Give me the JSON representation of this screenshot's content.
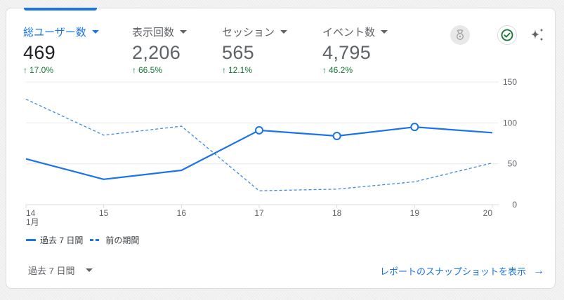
{
  "colors": {
    "accent": "#1a73e8",
    "positive": "#137333",
    "muted_text": "#5f6368",
    "primary_text": "#202124",
    "gridline": "#e8eaed"
  },
  "metrics": [
    {
      "label": "総ユーザー数",
      "value": "469",
      "delta": "17.0%",
      "active": true
    },
    {
      "label": "表示回数",
      "value": "2,206",
      "delta": "66.5%",
      "active": false
    },
    {
      "label": "セッション",
      "value": "565",
      "delta": "12.1%",
      "active": false
    },
    {
      "label": "イベント数",
      "value": "4,795",
      "delta": "46.2%",
      "active": false
    }
  ],
  "header_icons": {
    "medal": "medal-icon",
    "check": "check-circle-icon",
    "sparkle": "sparkle-icon"
  },
  "legend": {
    "current": "過去 7 日間",
    "previous": "前の期間"
  },
  "footer": {
    "range_label": "過去 7 日間",
    "snapshot_link": "レポートのスナップショットを表示",
    "arrow": "→"
  },
  "chart_data": {
    "type": "line",
    "title": "総ユーザー数",
    "x": [
      "14",
      "15",
      "16",
      "17",
      "18",
      "19",
      "20"
    ],
    "x_sublabel": "1月",
    "series": [
      {
        "name": "過去 7 日間",
        "style": "solid",
        "values": [
          56,
          31,
          42,
          91,
          84,
          95,
          88
        ]
      },
      {
        "name": "前の期間",
        "style": "dashed",
        "values": [
          129,
          85,
          96,
          17,
          19,
          28,
          51
        ]
      }
    ],
    "y_ticks": [
      "150",
      "100",
      "50",
      "0"
    ],
    "ylim": [
      0,
      150
    ],
    "y_axis_position": "right",
    "grid": true,
    "legend_position": "bottom-left",
    "xlabel": "",
    "ylabel": ""
  }
}
